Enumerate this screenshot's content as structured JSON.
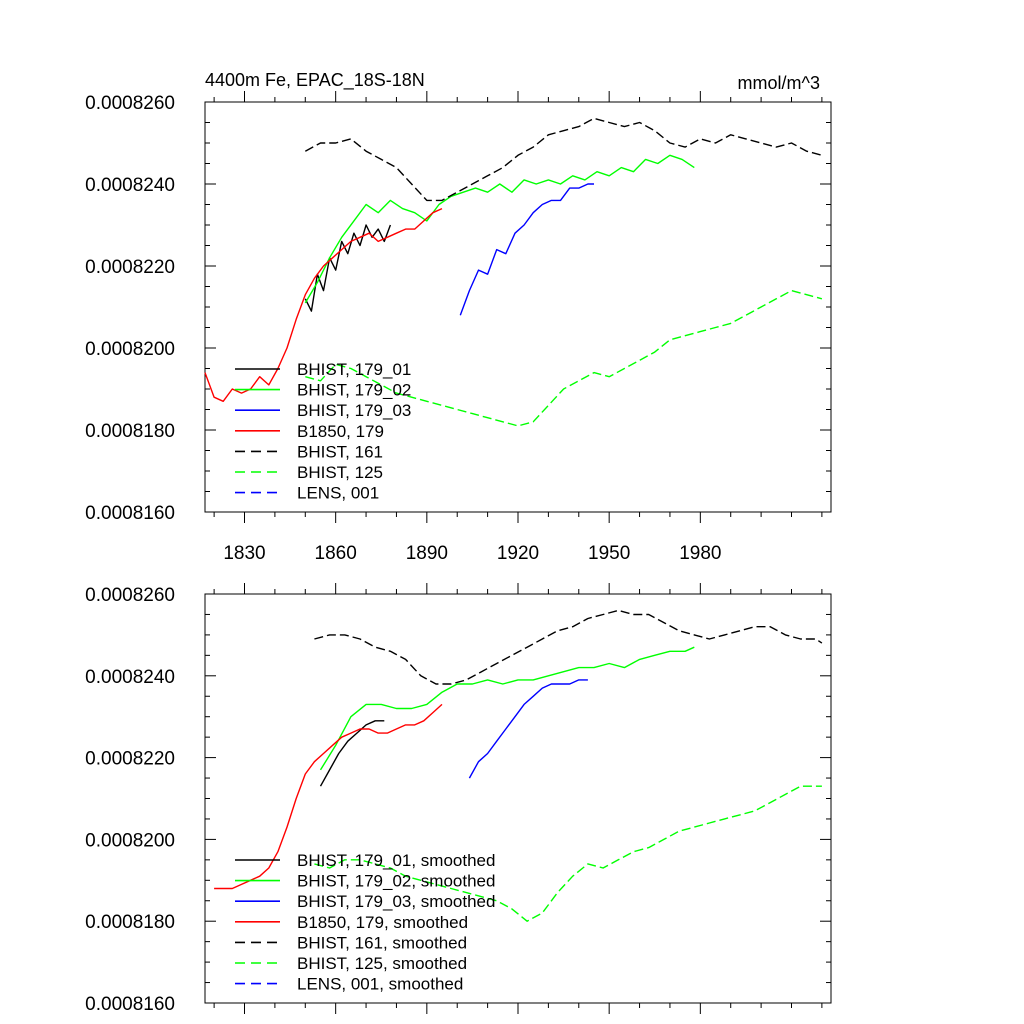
{
  "chart_data": [
    {
      "type": "line",
      "title": "4400m Fe, EPAC_18S-18N",
      "units": "mmol/m^3",
      "xlabel": "",
      "ylabel": "",
      "xlim": [
        1817,
        2023
      ],
      "ylim": [
        0.000816,
        0.000826
      ],
      "x_ticks": [
        1830,
        1860,
        1890,
        1920,
        1950,
        1980
      ],
      "x_tick_labels": [
        "1830",
        "1860",
        "1890",
        "1920",
        "1950",
        "1980"
      ],
      "y_ticks": [
        0.000816,
        0.000818,
        0.00082,
        0.000822,
        0.000824,
        0.000826
      ],
      "y_tick_labels": [
        "0.0008160",
        "0.0008180",
        "0.0008200",
        "0.0008220",
        "0.0008240",
        "0.0008260"
      ],
      "legend_position": "bottom-left",
      "grid": false,
      "series": [
        {
          "name": "BHIST, 179_01",
          "color": "#000000",
          "dash": "solid",
          "x": [
            1850,
            1852,
            1854,
            1856,
            1858,
            1860,
            1862,
            1864,
            1866,
            1868,
            1870,
            1872,
            1874,
            1876,
            1878
          ],
          "y": [
            0.0008212,
            0.0008209,
            0.0008218,
            0.0008214,
            0.0008222,
            0.0008219,
            0.0008226,
            0.0008223,
            0.0008228,
            0.0008225,
            0.000823,
            0.0008227,
            0.0008229,
            0.0008226,
            0.000823
          ]
        },
        {
          "name": "BHIST, 179_02",
          "color": "#00ff00",
          "dash": "solid",
          "x": [
            1850,
            1854,
            1858,
            1862,
            1866,
            1870,
            1874,
            1878,
            1882,
            1886,
            1890,
            1894,
            1898,
            1902,
            1906,
            1910,
            1914,
            1918,
            1922,
            1926,
            1930,
            1934,
            1938,
            1942,
            1946,
            1950,
            1954,
            1958,
            1962,
            1966,
            1970,
            1974,
            1978
          ],
          "y": [
            0.0008211,
            0.0008216,
            0.0008222,
            0.0008227,
            0.0008231,
            0.0008235,
            0.0008233,
            0.0008236,
            0.0008234,
            0.0008233,
            0.0008231,
            0.0008235,
            0.0008237,
            0.0008238,
            0.0008239,
            0.0008238,
            0.000824,
            0.0008238,
            0.0008241,
            0.000824,
            0.0008241,
            0.000824,
            0.0008242,
            0.0008241,
            0.0008243,
            0.0008242,
            0.0008244,
            0.0008243,
            0.0008246,
            0.0008245,
            0.0008247,
            0.0008246,
            0.0008244
          ]
        },
        {
          "name": "BHIST, 179_03",
          "color": "#0000ff",
          "dash": "solid",
          "x": [
            1901,
            1904,
            1907,
            1910,
            1913,
            1916,
            1919,
            1922,
            1925,
            1928,
            1931,
            1934,
            1937,
            1940,
            1943,
            1945
          ],
          "y": [
            0.0008208,
            0.0008214,
            0.0008219,
            0.0008218,
            0.0008224,
            0.0008223,
            0.0008228,
            0.000823,
            0.0008233,
            0.0008235,
            0.0008236,
            0.0008236,
            0.0008239,
            0.0008239,
            0.000824,
            0.000824
          ]
        },
        {
          "name": "B1850, 179",
          "color": "#ff0000",
          "dash": "solid",
          "x": [
            1817,
            1820,
            1823,
            1826,
            1829,
            1832,
            1835,
            1838,
            1841,
            1844,
            1847,
            1850,
            1853,
            1856,
            1859,
            1862,
            1865,
            1868,
            1871,
            1874,
            1877,
            1880,
            1883,
            1886,
            1889,
            1892,
            1895
          ],
          "y": [
            0.0008194,
            0.0008188,
            0.0008187,
            0.000819,
            0.0008189,
            0.000819,
            0.0008193,
            0.0008191,
            0.0008195,
            0.00082,
            0.0008207,
            0.0008213,
            0.0008217,
            0.000822,
            0.0008222,
            0.0008224,
            0.0008226,
            0.0008227,
            0.0008228,
            0.0008226,
            0.0008227,
            0.0008228,
            0.0008229,
            0.0008229,
            0.0008231,
            0.0008233,
            0.0008234
          ]
        },
        {
          "name": "BHIST, 161",
          "color": "#000000",
          "dash": "dashed",
          "x": [
            1850,
            1855,
            1860,
            1865,
            1870,
            1875,
            1880,
            1885,
            1890,
            1895,
            1900,
            1905,
            1910,
            1915,
            1920,
            1925,
            1930,
            1935,
            1940,
            1945,
            1950,
            1955,
            1960,
            1965,
            1970,
            1975,
            1980,
            1985,
            1990,
            1995,
            2000,
            2005,
            2010,
            2015,
            2020
          ],
          "y": [
            0.0008248,
            0.000825,
            0.000825,
            0.0008251,
            0.0008248,
            0.0008246,
            0.0008244,
            0.000824,
            0.0008236,
            0.0008236,
            0.0008238,
            0.000824,
            0.0008242,
            0.0008244,
            0.0008247,
            0.0008249,
            0.0008252,
            0.0008253,
            0.0008254,
            0.0008256,
            0.0008255,
            0.0008254,
            0.0008255,
            0.0008253,
            0.000825,
            0.0008249,
            0.0008251,
            0.000825,
            0.0008252,
            0.0008251,
            0.000825,
            0.0008249,
            0.000825,
            0.0008248,
            0.0008247
          ]
        },
        {
          "name": "BHIST, 125",
          "color": "#00ff00",
          "dash": "dashed",
          "x": [
            1850,
            1855,
            1860,
            1865,
            1870,
            1875,
            1880,
            1885,
            1890,
            1895,
            1900,
            1905,
            1910,
            1915,
            1920,
            1925,
            1930,
            1935,
            1940,
            1945,
            1950,
            1955,
            1960,
            1965,
            1970,
            1975,
            1980,
            1985,
            1990,
            1995,
            2000,
            2005,
            2010,
            2015,
            2020
          ],
          "y": [
            0.0008193,
            0.0008192,
            0.0008196,
            0.0008195,
            0.0008193,
            0.0008191,
            0.0008189,
            0.0008188,
            0.0008187,
            0.0008186,
            0.0008185,
            0.0008184,
            0.0008183,
            0.0008182,
            0.0008181,
            0.0008182,
            0.0008186,
            0.000819,
            0.0008192,
            0.0008194,
            0.0008193,
            0.0008195,
            0.0008197,
            0.0008199,
            0.0008202,
            0.0008203,
            0.0008204,
            0.0008205,
            0.0008206,
            0.0008208,
            0.000821,
            0.0008212,
            0.0008214,
            0.0008213,
            0.0008212
          ]
        },
        {
          "name": "LENS, 001",
          "color": "#0000ff",
          "dash": "dashed",
          "x": [],
          "y": []
        }
      ]
    },
    {
      "type": "line",
      "title": "",
      "xlabel": "",
      "ylabel": "",
      "xlim": [
        1817,
        2023
      ],
      "ylim": [
        0.000816,
        0.000826
      ],
      "x_ticks": [
        1830,
        1860,
        1890,
        1920,
        1950,
        1980
      ],
      "x_tick_labels": [],
      "y_ticks": [
        0.000816,
        0.000818,
        0.00082,
        0.000822,
        0.000824,
        0.000826
      ],
      "y_tick_labels": [
        "0.0008160",
        "0.0008180",
        "0.0008200",
        "0.0008220",
        "0.0008240",
        "0.0008260"
      ],
      "legend_position": "bottom-left",
      "grid": false,
      "series": [
        {
          "name": "BHIST, 179_01, smoothed",
          "color": "#000000",
          "dash": "solid",
          "x": [
            1855,
            1858,
            1861,
            1864,
            1867,
            1870,
            1873,
            1876
          ],
          "y": [
            0.0008213,
            0.0008217,
            0.0008221,
            0.0008224,
            0.0008226,
            0.0008228,
            0.0008229,
            0.0008229
          ]
        },
        {
          "name": "BHIST, 179_02, smoothed",
          "color": "#00ff00",
          "dash": "solid",
          "x": [
            1855,
            1860,
            1865,
            1870,
            1875,
            1880,
            1885,
            1890,
            1895,
            1900,
            1905,
            1910,
            1915,
            1920,
            1925,
            1930,
            1935,
            1940,
            1945,
            1950,
            1955,
            1960,
            1965,
            1970,
            1975,
            1978
          ],
          "y": [
            0.0008217,
            0.0008223,
            0.000823,
            0.0008233,
            0.0008233,
            0.0008232,
            0.0008232,
            0.0008233,
            0.0008236,
            0.0008238,
            0.0008238,
            0.0008239,
            0.0008238,
            0.0008239,
            0.0008239,
            0.000824,
            0.0008241,
            0.0008242,
            0.0008242,
            0.0008243,
            0.0008242,
            0.0008244,
            0.0008245,
            0.0008246,
            0.0008246,
            0.0008247
          ]
        },
        {
          "name": "BHIST, 179_03, smoothed",
          "color": "#0000ff",
          "dash": "solid",
          "x": [
            1904,
            1907,
            1910,
            1913,
            1916,
            1919,
            1922,
            1925,
            1928,
            1931,
            1934,
            1937,
            1940,
            1943
          ],
          "y": [
            0.0008215,
            0.0008219,
            0.0008221,
            0.0008224,
            0.0008227,
            0.000823,
            0.0008233,
            0.0008235,
            0.0008237,
            0.0008238,
            0.0008238,
            0.0008238,
            0.0008239,
            0.0008239
          ]
        },
        {
          "name": "B1850, 179, smoothed",
          "color": "#ff0000",
          "dash": "solid",
          "x": [
            1820,
            1823,
            1826,
            1829,
            1832,
            1835,
            1838,
            1841,
            1844,
            1847,
            1850,
            1853,
            1856,
            1859,
            1862,
            1865,
            1868,
            1871,
            1874,
            1877,
            1880,
            1883,
            1886,
            1889,
            1892,
            1895
          ],
          "y": [
            0.0008188,
            0.0008188,
            0.0008188,
            0.0008189,
            0.000819,
            0.0008191,
            0.0008193,
            0.0008197,
            0.0008203,
            0.000821,
            0.0008216,
            0.0008219,
            0.0008221,
            0.0008223,
            0.0008225,
            0.0008226,
            0.0008227,
            0.0008227,
            0.0008226,
            0.0008226,
            0.0008227,
            0.0008228,
            0.0008228,
            0.0008229,
            0.0008231,
            0.0008233
          ]
        },
        {
          "name": "BHIST, 161, smoothed",
          "color": "#000000",
          "dash": "dashed",
          "x": [
            1853,
            1858,
            1863,
            1868,
            1873,
            1878,
            1883,
            1888,
            1893,
            1898,
            1903,
            1908,
            1913,
            1918,
            1923,
            1928,
            1933,
            1938,
            1943,
            1948,
            1953,
            1958,
            1963,
            1968,
            1973,
            1978,
            1983,
            1988,
            1993,
            1998,
            2003,
            2008,
            2013,
            2018,
            2020
          ],
          "y": [
            0.0008249,
            0.000825,
            0.000825,
            0.0008249,
            0.0008247,
            0.0008246,
            0.0008244,
            0.000824,
            0.0008238,
            0.0008238,
            0.0008239,
            0.0008241,
            0.0008243,
            0.0008245,
            0.0008247,
            0.0008249,
            0.0008251,
            0.0008252,
            0.0008254,
            0.0008255,
            0.0008256,
            0.0008255,
            0.0008255,
            0.0008253,
            0.0008251,
            0.000825,
            0.0008249,
            0.000825,
            0.0008251,
            0.0008252,
            0.0008252,
            0.000825,
            0.0008249,
            0.0008249,
            0.0008248
          ]
        },
        {
          "name": "BHIST, 125, smoothed",
          "color": "#00ff00",
          "dash": "dashed",
          "x": [
            1853,
            1858,
            1863,
            1868,
            1873,
            1878,
            1883,
            1888,
            1893,
            1898,
            1903,
            1908,
            1913,
            1918,
            1923,
            1928,
            1933,
            1938,
            1943,
            1948,
            1953,
            1958,
            1963,
            1968,
            1973,
            1978,
            1983,
            1988,
            1993,
            1998,
            2003,
            2008,
            2013,
            2018,
            2020
          ],
          "y": [
            0.0008194,
            0.0008193,
            0.0008195,
            0.0008195,
            0.0008194,
            0.0008193,
            0.0008191,
            0.000819,
            0.0008189,
            0.0008188,
            0.0008187,
            0.0008186,
            0.0008185,
            0.0008183,
            0.000818,
            0.0008182,
            0.0008187,
            0.0008191,
            0.0008194,
            0.0008193,
            0.0008195,
            0.0008197,
            0.0008198,
            0.00082,
            0.0008202,
            0.0008203,
            0.0008204,
            0.0008205,
            0.0008206,
            0.0008207,
            0.0008209,
            0.0008211,
            0.0008213,
            0.0008213,
            0.0008213
          ]
        },
        {
          "name": "LENS, 001, smoothed",
          "color": "#0000ff",
          "dash": "dashed",
          "x": [],
          "y": []
        }
      ]
    }
  ]
}
